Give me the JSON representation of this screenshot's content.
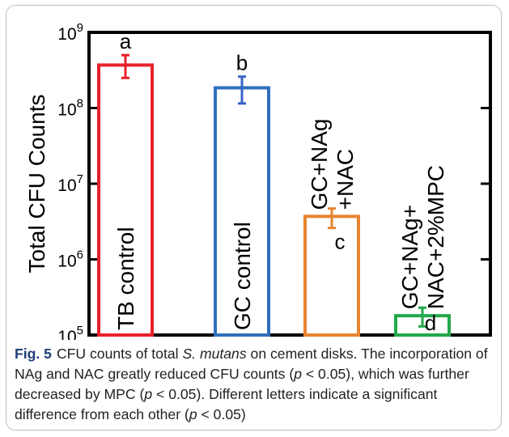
{
  "chart_data": {
    "type": "bar",
    "ylabel": "Total CFU Counts",
    "xlabel": "",
    "yscale": "log",
    "ylim": [
      100000,
      1000000000
    ],
    "yticks": [
      {
        "value": 100000,
        "base": "10",
        "exp": "5"
      },
      {
        "value": 1000000,
        "base": "10",
        "exp": "6"
      },
      {
        "value": 10000000,
        "base": "10",
        "exp": "7"
      },
      {
        "value": 100000000,
        "base": "10",
        "exp": "8"
      },
      {
        "value": 1000000000,
        "base": "10",
        "exp": "9"
      }
    ],
    "categories": [
      "TB control",
      "GC control",
      "GC+NAg +NAC",
      "GC+NAg+ NAC+2%MPC"
    ],
    "values": [
      370000000,
      185000000,
      3700000,
      180000
    ],
    "error_low": [
      250000000,
      115000000,
      2600000,
      130000
    ],
    "error_high": [
      500000000,
      260000000,
      4700000,
      230000
    ],
    "letters": [
      "a",
      "b",
      "c",
      "d"
    ],
    "colors": [
      "#e8202a",
      "#2f6fbd",
      "#e88430",
      "#22a84a"
    ],
    "grid": false
  },
  "bars": [
    {
      "lines": [
        "TB control"
      ],
      "label_pos": "inside",
      "letter_pos": "above",
      "err_color": "#e8202a"
    },
    {
      "lines": [
        "GC control"
      ],
      "label_pos": "inside",
      "letter_pos": "above",
      "err_color": "#3a63c8"
    },
    {
      "lines": [
        "GC+NAg",
        "+NAC"
      ],
      "label_pos": "above",
      "letter_pos": "inside",
      "err_color": "#e88430"
    },
    {
      "lines": [
        "GC+NAg+",
        "NAC+2%MPC"
      ],
      "label_pos": "above",
      "letter_pos": "inside",
      "err_color": "#22a84a"
    }
  ],
  "caption": {
    "fig_label": "Fig. 5",
    "t1": "CFU counts of total ",
    "t2": "S. mutans",
    "t3": " on cement disks. The incorporation of NAg and NAC greatly reduced CFU counts (",
    "p1": "p",
    "t4": " < 0.05), which was further decreased by MPC (",
    "p2": "p",
    "t5": " < 0.05). Different letters indicate a significant difference from each other (",
    "p3": "p",
    "t6": " < 0.05)"
  }
}
